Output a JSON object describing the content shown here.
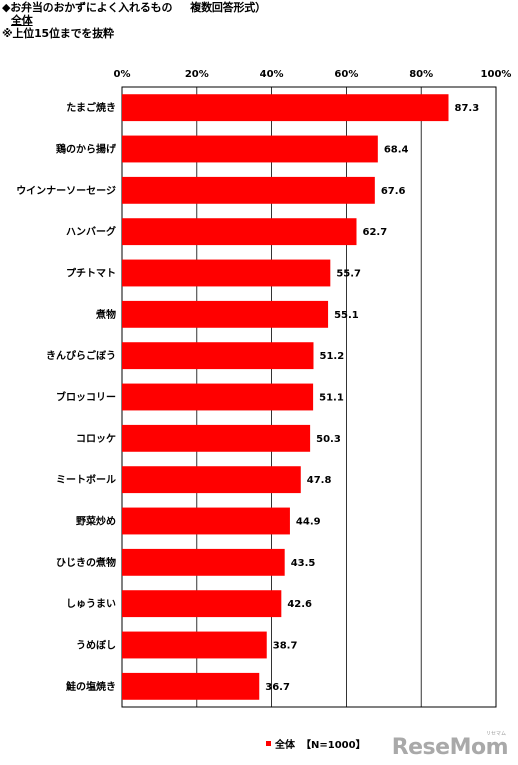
{
  "header": {
    "title": "◆お弁当のおかずによく入れるもの",
    "question_type": "複数回答形式）",
    "subset": "全体",
    "note": "※上位15位までを抜粋"
  },
  "legend": {
    "series_label": "全体",
    "sample_label": "【N=1000】"
  },
  "watermark": {
    "small": "リセマム",
    "logo": "ReseMom"
  },
  "chart_data": {
    "type": "bar",
    "orientation": "horizontal",
    "categories": [
      "たまご焼き",
      "鶏のから揚げ",
      "ウインナーソーセージ",
      "ハンバーグ",
      "プチトマト",
      "煮物",
      "きんぴらごぼう",
      "ブロッコリー",
      "コロッケ",
      "ミートボール",
      "野菜炒め",
      "ひじきの煮物",
      "しゅうまい",
      "うめぼし",
      "鮭の塩焼き"
    ],
    "series": [
      {
        "name": "全体",
        "color": "#ff0000",
        "values": [
          87.3,
          68.4,
          67.6,
          62.7,
          55.7,
          55.1,
          51.2,
          51.1,
          50.3,
          47.8,
          44.9,
          43.5,
          42.6,
          38.7,
          36.7
        ]
      }
    ],
    "xlim": [
      0,
      100
    ],
    "xticks": [
      0,
      20,
      40,
      60,
      80,
      100
    ],
    "xtick_labels": [
      "0%",
      "20%",
      "40%",
      "60%",
      "80%",
      "100%"
    ],
    "grid": true,
    "legend_position": "bottom"
  }
}
